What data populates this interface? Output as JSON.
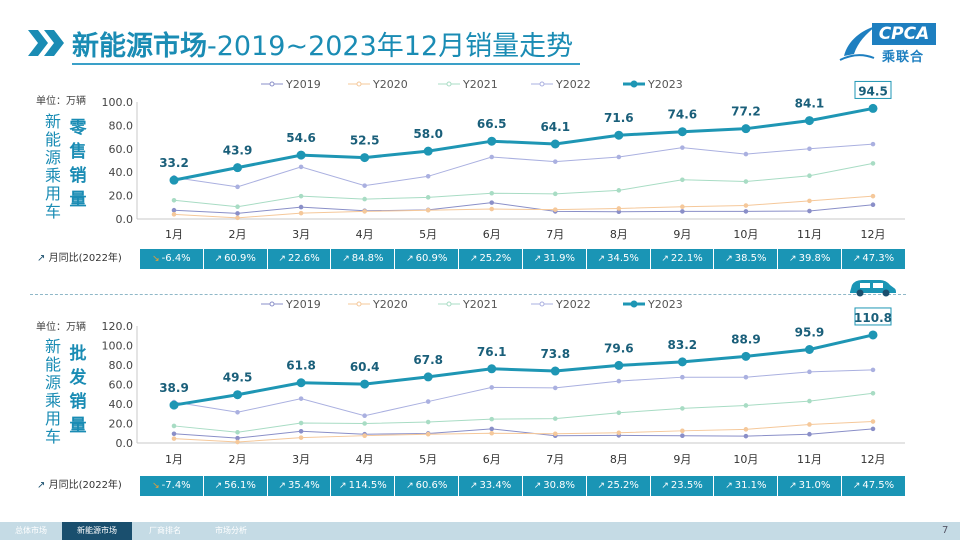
{
  "header": {
    "title_main": "新能源市场",
    "title_sub": "-2019~2023年12月销量走势",
    "logo_text": "CPCA",
    "logo_cn": "乘联合"
  },
  "footer": {
    "tabs": [
      "总体市场",
      "新能源市场",
      "厂商排名",
      "市场分析"
    ],
    "active": 1,
    "page": "7"
  },
  "panels": [
    {
      "unit_label": "单位：万辆",
      "side_label": [
        "新",
        "能",
        "源",
        "乘",
        "用",
        "车"
      ],
      "side_label2": [
        "零",
        "售",
        "销",
        "量"
      ],
      "yoy_label": "月同比(2022年)",
      "yoy": [
        "-6.4%",
        "60.9%",
        "22.6%",
        "84.8%",
        "60.9%",
        "25.2%",
        "31.9%",
        "34.5%",
        "22.1%",
        "38.5%",
        "39.8%",
        "47.3%"
      ],
      "yoy_trend": [
        "down",
        "up",
        "up",
        "up",
        "up",
        "up",
        "up",
        "up",
        "up",
        "up",
        "up",
        "up"
      ]
    },
    {
      "unit_label": "单位：万辆",
      "side_label": [
        "新",
        "能",
        "源",
        "乘",
        "用",
        "车"
      ],
      "side_label2": [
        "批",
        "发",
        "销",
        "量"
      ],
      "yoy_label": "月同比(2022年)",
      "yoy": [
        "-7.4%",
        "56.1%",
        "35.4%",
        "114.5%",
        "60.6%",
        "33.4%",
        "30.8%",
        "25.2%",
        "23.5%",
        "31.1%",
        "31.0%",
        "47.5%"
      ],
      "yoy_trend": [
        "down",
        "up",
        "up",
        "up",
        "up",
        "up",
        "up",
        "up",
        "up",
        "up",
        "up",
        "up"
      ]
    }
  ],
  "chart_data": [
    {
      "type": "line",
      "title": "零售销量",
      "ylabel": "单位：万辆",
      "categories": [
        "1月",
        "2月",
        "3月",
        "4月",
        "5月",
        "6月",
        "7月",
        "8月",
        "9月",
        "10月",
        "11月",
        "12月"
      ],
      "ylim": [
        0,
        100
      ],
      "yticks": [
        "0.0",
        "20.0",
        "40.0",
        "60.0",
        "80.0",
        "100.0"
      ],
      "legend_position": "top",
      "series": [
        {
          "name": "Y2019",
          "color": "#8a8fc8",
          "values": [
            7.5,
            4.8,
            10.2,
            7.0,
            7.8,
            14.0,
            6.5,
            6.2,
            6.5,
            6.5,
            6.8,
            12.2
          ]
        },
        {
          "name": "Y2020",
          "color": "#f5c89a",
          "values": [
            4.0,
            1.0,
            5.0,
            6.5,
            7.5,
            8.5,
            8.0,
            9.0,
            10.5,
            11.5,
            15.5,
            19.5
          ]
        },
        {
          "name": "Y2021",
          "color": "#a8dcc4",
          "values": [
            16.0,
            10.5,
            19.5,
            17.0,
            18.5,
            22.0,
            21.5,
            24.5,
            33.5,
            32.0,
            37.0,
            47.5
          ]
        },
        {
          "name": "Y2022",
          "color": "#aab0e0",
          "values": [
            35.5,
            27.5,
            44.5,
            28.5,
            36.5,
            53.0,
            49.0,
            53.0,
            61.0,
            55.5,
            60.0,
            64.0
          ]
        },
        {
          "name": "Y2023",
          "color": "#1e96b4",
          "values": [
            33.2,
            43.9,
            54.6,
            52.5,
            58.0,
            66.5,
            64.1,
            71.6,
            74.6,
            77.2,
            84.1,
            94.5
          ],
          "labels": [
            "33.2",
            "43.9",
            "54.6",
            "52.5",
            "58.0",
            "66.5",
            "64.1",
            "71.6",
            "74.6",
            "77.2",
            "84.1",
            "94.5"
          ]
        }
      ]
    },
    {
      "type": "line",
      "title": "批发销量",
      "ylabel": "单位：万辆",
      "categories": [
        "1月",
        "2月",
        "3月",
        "4月",
        "5月",
        "6月",
        "7月",
        "8月",
        "9月",
        "10月",
        "11月",
        "12月"
      ],
      "ylim": [
        0,
        120
      ],
      "yticks": [
        "0.0",
        "20.0",
        "40.0",
        "60.0",
        "80.0",
        "100.0",
        "120.0"
      ],
      "legend_position": "top",
      "series": [
        {
          "name": "Y2019",
          "color": "#8a8fc8",
          "values": [
            9.5,
            5.0,
            12.0,
            9.0,
            9.8,
            14.5,
            7.5,
            7.8,
            7.5,
            7.0,
            9.0,
            14.5
          ]
        },
        {
          "name": "Y2020",
          "color": "#f5c89a",
          "values": [
            4.5,
            1.0,
            5.5,
            7.5,
            9.0,
            10.0,
            9.5,
            10.5,
            12.5,
            14.0,
            19.0,
            22.0
          ]
        },
        {
          "name": "Y2021",
          "color": "#a8dcc4",
          "values": [
            17.5,
            11.0,
            20.5,
            20.0,
            21.5,
            24.5,
            25.0,
            31.0,
            35.5,
            38.5,
            43.0,
            51.0
          ]
        },
        {
          "name": "Y2022",
          "color": "#aab0e0",
          "values": [
            42.0,
            31.5,
            45.5,
            28.0,
            42.5,
            57.0,
            56.5,
            63.5,
            67.5,
            67.5,
            73.0,
            75.0
          ]
        },
        {
          "name": "Y2023",
          "color": "#1e96b4",
          "values": [
            38.9,
            49.5,
            61.8,
            60.4,
            67.8,
            76.1,
            73.8,
            79.6,
            83.2,
            88.9,
            95.9,
            110.8
          ],
          "labels": [
            "38.9",
            "49.5",
            "61.8",
            "60.4",
            "67.8",
            "76.1",
            "73.8",
            "79.6",
            "83.2",
            "88.9",
            "95.9",
            "110.8"
          ]
        }
      ]
    }
  ]
}
